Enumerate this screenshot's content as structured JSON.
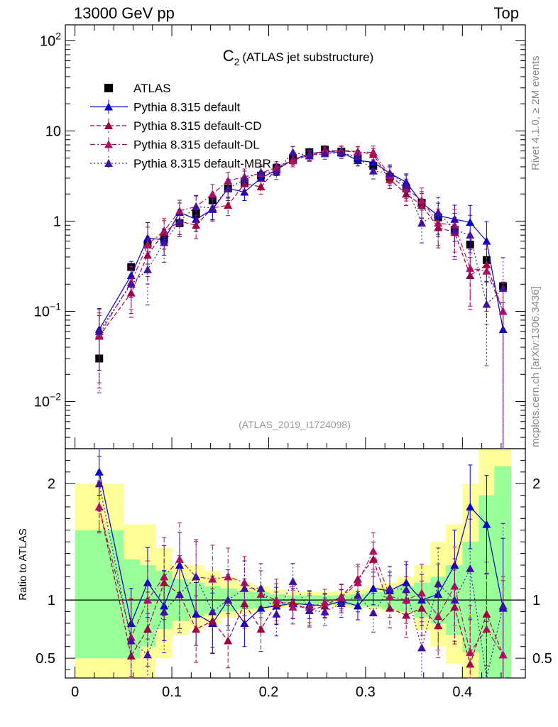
{
  "header": {
    "left": "13000 GeV pp",
    "right": "Top"
  },
  "side_labels": {
    "rivet": "Rivet 4.1.0, ≥ 2M events",
    "site": "mcplots.cern.ch [arXiv:1306.3436]"
  },
  "colors": {
    "atlas": "#000000",
    "default": "#0000cc",
    "cd": "#a0003c",
    "dl": "#b01060",
    "mbr": "#4010a0",
    "band_yellow": "#ffff99",
    "band_green": "#99ff99"
  },
  "chart_data": [
    {
      "type": "line",
      "title_main": "C",
      "title_sub": "2",
      "title_rest": "(ATLAS jet substructure)",
      "analysis_label": "(ATLAS_2019_I1724098)",
      "yscale": "log",
      "ylim": [
        0.003,
        150
      ],
      "xlim": [
        -0.01,
        0.465
      ],
      "y_ticks": [
        {
          "v": 0.01,
          "b": "10",
          "e": "−2"
        },
        {
          "v": 0.1,
          "b": "10",
          "e": "−1"
        },
        {
          "v": 1,
          "b": "1",
          "e": ""
        },
        {
          "v": 10,
          "b": "10",
          "e": ""
        },
        {
          "v": 100,
          "b": "10",
          "e": "2"
        }
      ],
      "legend": {
        "position": "top-left",
        "entries": [
          "ATLAS",
          "Pythia 8.315 default",
          "Pythia 8.315 default-CD",
          "Pythia 8.315 default-DL",
          "Pythia 8.315 default-MBR"
        ]
      },
      "x": [
        0.025,
        0.058,
        0.075,
        0.092,
        0.108,
        0.125,
        0.142,
        0.158,
        0.175,
        0.192,
        0.208,
        0.225,
        0.242,
        0.258,
        0.275,
        0.292,
        0.308,
        0.325,
        0.342,
        0.358,
        0.375,
        0.392,
        0.408,
        0.425,
        0.442
      ],
      "series": [
        {
          "name": "ATLAS",
          "key": "atlas",
          "style": "square",
          "values": [
            0.03,
            0.31,
            0.55,
            0.65,
            0.95,
            1.2,
            1.7,
            2.3,
            2.7,
            3.2,
            3.9,
            5.0,
            5.8,
            6.2,
            5.9,
            5.0,
            4.1,
            3.1,
            2.3,
            1.6,
            1.1,
            0.8,
            0.55,
            0.37,
            0.19
          ]
        },
        {
          "name": "Pythia 8.315 default",
          "key": "default",
          "style": "solid",
          "values": [
            0.063,
            0.25,
            0.65,
            0.62,
            1.25,
            1.05,
            1.35,
            2.3,
            2.1,
            3.0,
            3.7,
            4.8,
            5.6,
            5.9,
            5.8,
            4.7,
            4.5,
            3.4,
            2.7,
            1.6,
            1.15,
            1.05,
            0.97,
            0.6,
            0.063
          ]
        },
        {
          "name": "Pythia 8.315 default-CD",
          "key": "cd",
          "style": "dash",
          "values": [
            0.053,
            0.16,
            0.42,
            0.75,
            1.0,
            0.9,
            1.4,
            1.5,
            2.6,
            2.4,
            3.8,
            4.9,
            5.3,
            5.9,
            6.1,
            5.9,
            5.5,
            2.9,
            2.0,
            1.5,
            0.85,
            0.75,
            0.25,
            0.33,
            0.1
          ]
        },
        {
          "name": "Pythia 8.315 default-DL",
          "key": "dl",
          "style": "dashdot",
          "values": [
            0.055,
            0.21,
            0.55,
            0.78,
            1.3,
            1.45,
            2.0,
            2.8,
            3.1,
            3.4,
            3.95,
            4.7,
            5.4,
            6.1,
            6.0,
            5.8,
            5.8,
            3.2,
            2.3,
            1.7,
            0.95,
            0.9,
            0.3,
            0.28,
            0.1
          ]
        },
        {
          "name": "Pythia 8.315 default-MBR",
          "key": "mbr",
          "style": "dot",
          "values": [
            0.06,
            0.2,
            0.29,
            0.58,
            1.0,
            1.45,
            1.4,
            2.3,
            2.9,
            3.5,
            3.5,
            5.8,
            5.3,
            5.6,
            5.7,
            5.2,
            3.6,
            3.4,
            2.5,
            0.95,
            1.25,
            0.8,
            0.7,
            0.12,
            0.18
          ]
        }
      ]
    },
    {
      "type": "line",
      "ylabel": "Ratio to ATLAS",
      "ylim": [
        0.33,
        2.3
      ],
      "xlim": [
        -0.01,
        0.465
      ],
      "y_ticks": [
        0.5,
        1,
        2
      ],
      "x_ticks": [
        0,
        0.1,
        0.2,
        0.3,
        0.4
      ],
      "x_tick_labels": [
        "0",
        "0.1",
        "0.2",
        "0.3",
        "0.4"
      ],
      "band_edges": [
        0,
        0.05,
        0.067,
        0.083,
        0.1,
        0.117,
        0.133,
        0.15,
        0.167,
        0.183,
        0.2,
        0.217,
        0.233,
        0.25,
        0.267,
        0.283,
        0.3,
        0.317,
        0.333,
        0.35,
        0.367,
        0.383,
        0.4,
        0.417,
        0.433,
        0.45
      ],
      "band_yellow": [
        [
          0.33,
          2.0
        ],
        [
          0.33,
          1.65
        ],
        [
          0.33,
          1.65
        ],
        [
          0.5,
          1.45
        ],
        [
          0.7,
          1.3
        ],
        [
          0.75,
          1.3
        ],
        [
          0.8,
          1.25
        ],
        [
          0.85,
          1.2
        ],
        [
          0.88,
          1.15
        ],
        [
          0.9,
          1.12
        ],
        [
          0.93,
          1.09
        ],
        [
          0.94,
          1.08
        ],
        [
          0.95,
          1.07
        ],
        [
          0.95,
          1.07
        ],
        [
          0.94,
          1.08
        ],
        [
          0.93,
          1.09
        ],
        [
          0.92,
          1.12
        ],
        [
          0.9,
          1.15
        ],
        [
          0.88,
          1.2
        ],
        [
          0.75,
          1.3
        ],
        [
          0.6,
          1.5
        ],
        [
          0.45,
          1.65
        ],
        [
          0.33,
          2.0
        ],
        [
          0.33,
          2.3
        ],
        [
          0.33,
          2.3
        ]
      ],
      "band_green": [
        [
          0.5,
          1.6
        ],
        [
          0.5,
          1.35
        ],
        [
          0.6,
          1.3
        ],
        [
          0.75,
          1.25
        ],
        [
          0.82,
          1.18
        ],
        [
          0.86,
          1.15
        ],
        [
          0.88,
          1.12
        ],
        [
          0.9,
          1.1
        ],
        [
          0.92,
          1.08
        ],
        [
          0.93,
          1.07
        ],
        [
          0.95,
          1.05
        ],
        [
          0.96,
          1.04
        ],
        [
          0.96,
          1.04
        ],
        [
          0.97,
          1.04
        ],
        [
          0.96,
          1.04
        ],
        [
          0.95,
          1.05
        ],
        [
          0.94,
          1.07
        ],
        [
          0.92,
          1.09
        ],
        [
          0.9,
          1.12
        ],
        [
          0.85,
          1.15
        ],
        [
          0.8,
          1.2
        ],
        [
          0.7,
          1.3
        ],
        [
          0.55,
          1.5
        ],
        [
          0.33,
          1.9
        ],
        [
          0.33,
          2.15
        ]
      ],
      "series": [
        {
          "name": "Pythia 8.315 default",
          "key": "default",
          "style": "solid",
          "values": [
            2.1,
            0.8,
            1.15,
            0.95,
            1.3,
            0.88,
            0.8,
            1.0,
            0.8,
            0.93,
            0.95,
            0.97,
            0.96,
            0.95,
            0.99,
            0.95,
            1.1,
            1.08,
            1.15,
            1.0,
            1.05,
            1.3,
            1.8,
            1.65,
            0.93
          ]
        },
        {
          "name": "Pythia 8.315 default-CD",
          "key": "cd",
          "style": "dash",
          "values": [
            1.8,
            0.52,
            0.75,
            1.15,
            1.05,
            0.75,
            0.82,
            0.65,
            0.97,
            0.75,
            0.97,
            0.98,
            0.91,
            0.95,
            1.03,
            1.18,
            1.35,
            0.93,
            0.87,
            0.93,
            0.78,
            0.94,
            0.45,
            0.88,
            0.53
          ]
        },
        {
          "name": "Pythia 8.315 default-DL",
          "key": "dl",
          "style": "dashdot",
          "values": [
            1.8,
            0.68,
            1.0,
            1.2,
            1.35,
            1.2,
            1.18,
            1.2,
            1.15,
            1.05,
            1.0,
            0.94,
            0.94,
            0.98,
            1.02,
            1.15,
            1.42,
            1.03,
            1.0,
            1.06,
            0.86,
            1.12,
            0.55,
            0.75,
            0.53
          ]
        },
        {
          "name": "Pythia 8.315 default-MBR",
          "key": "mbr",
          "style": "dot",
          "values": [
            2.0,
            0.65,
            0.53,
            0.9,
            1.05,
            1.2,
            0.9,
            1.0,
            1.1,
            1.1,
            0.88,
            1.16,
            0.91,
            0.9,
            0.97,
            1.04,
            0.89,
            1.1,
            1.09,
            0.59,
            1.14,
            1.0,
            1.27,
            0.32,
            0.95
          ]
        }
      ]
    }
  ]
}
